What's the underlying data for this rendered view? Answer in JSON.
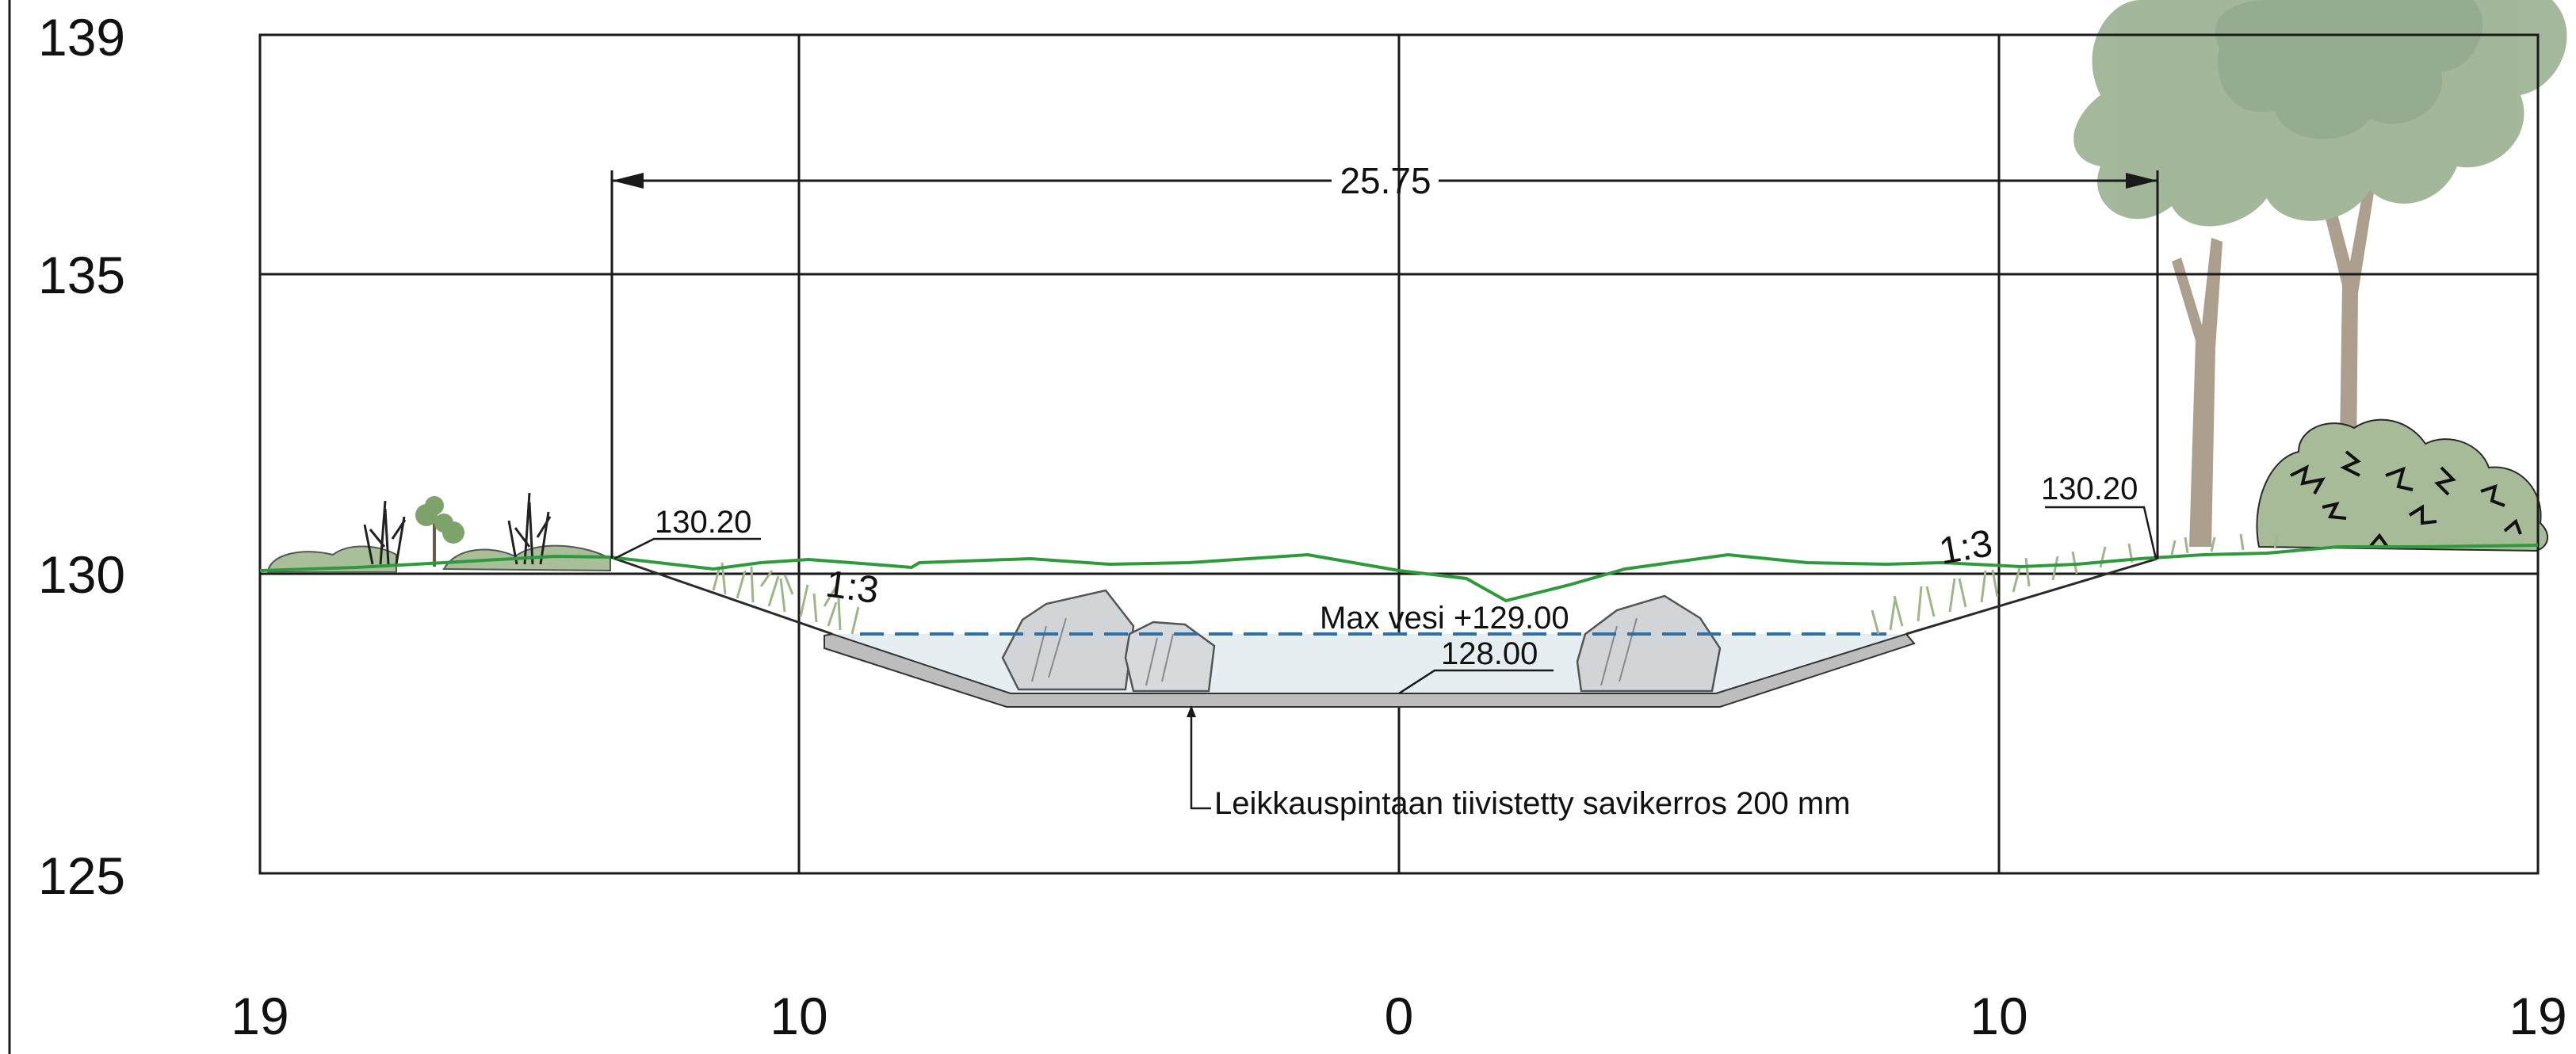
{
  "axes": {
    "y_labels": [
      "139",
      "135",
      "130",
      "125"
    ],
    "x_labels": [
      "19",
      "10",
      "0",
      "10",
      "19"
    ]
  },
  "annotations": {
    "width_dimension": "25.75",
    "left_top_level": "130.20",
    "right_top_level": "130.20",
    "left_slope": "1:3",
    "right_slope": "1:3",
    "max_water": "Max vesi +129.00",
    "bottom_level": "128.00",
    "clay_layer_note": "Leikkauspintaan tiivistetty savikerros 200 mm"
  },
  "colors": {
    "grid": "#1a1a1a",
    "terrain_line": "#2e9a3c",
    "water_fill": "#e6eef2",
    "water_line": "#2f6fa3",
    "clay_layer": "#bdbdbd",
    "vegetation": "#a9bf9a",
    "tree_foliage": "#9fb496",
    "tree_trunk": "#a89a88",
    "rock": "#d2d5d8"
  },
  "icons": [
    "tree-icon",
    "shrub-icon",
    "rock-icon",
    "grass-icon",
    "reed-icon"
  ]
}
